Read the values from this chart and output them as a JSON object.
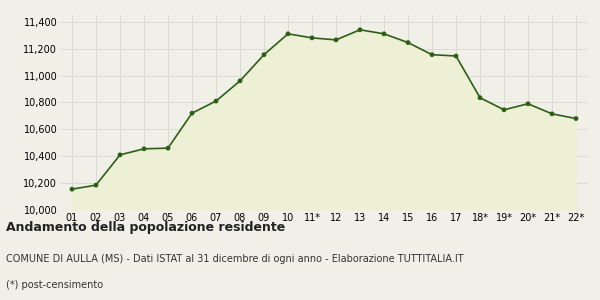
{
  "x_labels": [
    "01",
    "02",
    "03",
    "04",
    "05",
    "06",
    "07",
    "08",
    "09",
    "10",
    "11*",
    "12",
    "13",
    "14",
    "15",
    "16",
    "17",
    "18*",
    "19*",
    "20*",
    "21*",
    "22*"
  ],
  "y_values": [
    10155,
    10185,
    10410,
    10455,
    10460,
    10720,
    10810,
    10960,
    11155,
    11310,
    11280,
    11265,
    11340,
    11310,
    11245,
    11155,
    11145,
    10835,
    10745,
    10790,
    10715,
    10680
  ],
  "line_color": "#2d6016",
  "fill_color": "#edf0d4",
  "marker_color": "#2d6016",
  "bg_color": "#f0f0e8",
  "grid_color": "#d8d8d0",
  "ylim_min": 10000,
  "ylim_max": 11450,
  "yticks": [
    10000,
    10200,
    10400,
    10600,
    10800,
    11000,
    11200,
    11400
  ],
  "title": "Andamento della popolazione residente",
  "subtitle1": "COMUNE DI AULLA (MS) - Dati ISTAT al 31 dicembre di ogni anno - Elaborazione TUTTITALIA.IT",
  "subtitle2": "(*) post-censimento",
  "title_fontsize": 9,
  "subtitle_fontsize": 7,
  "tick_fontsize": 7
}
